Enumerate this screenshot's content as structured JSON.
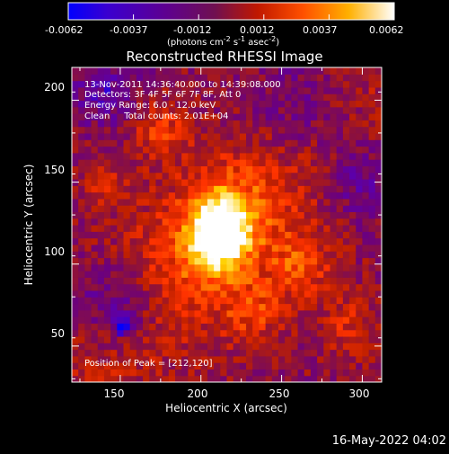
{
  "colorbar": {
    "ticks": [
      "-0.0062",
      "-0.0037",
      "-0.0012",
      "0.0012",
      "0.0037",
      "0.0062"
    ],
    "unit_label": "(photons cm",
    "unit_exp1": "-2",
    "unit_mid": " s",
    "unit_exp2": "-1",
    "unit_tail": " asec",
    "unit_exp3": "-2",
    "unit_close": ")",
    "colors": [
      "#0000ff",
      "#5a00b0",
      "#6a0080",
      "#8a1040",
      "#c02000",
      "#ff3300",
      "#ff8800",
      "#ffd000",
      "#ffffff"
    ]
  },
  "chart_data": {
    "type": "heatmap",
    "title": "Reconstructed RHESSI Image",
    "xlabel": "Heliocentric X (arcsec)",
    "ylabel": "Heliocentric Y (arcsec)",
    "xlim": [
      120,
      312
    ],
    "ylim": [
      28,
      220
    ],
    "x_ticks": [
      "150",
      "200",
      "250",
      "300"
    ],
    "y_ticks": [
      "50",
      "100",
      "150",
      "200"
    ],
    "x_tick_values": [
      150,
      200,
      250,
      300
    ],
    "y_tick_values": [
      50,
      100,
      150,
      200
    ],
    "info_lines": [
      "13-Nov-2011 14:36:40.000 to 14:39:08.000",
      "Detectors: 3F 4F 5F 6F 7F 8F, Att 0",
      "Energy Range: 6.0 - 12.0 keV",
      "Clean     Total counts: 2.01E+04"
    ],
    "peak_label": "Position of Peak = [212,120]",
    "peak_position": [
      212,
      120
    ],
    "value_range": [
      -0.0062,
      0.0062
    ]
  },
  "timestamp": "16-May-2022 04:02"
}
